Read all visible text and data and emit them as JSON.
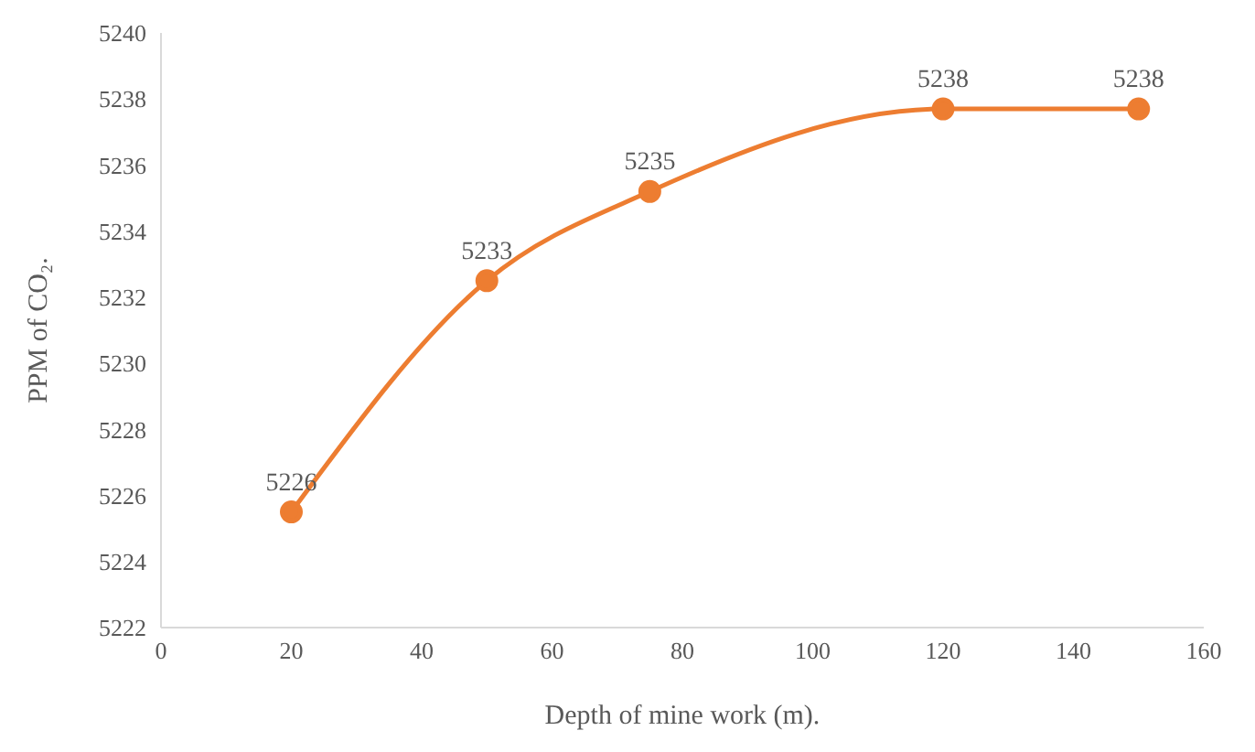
{
  "chart_data": {
    "type": "line",
    "xlabel": "Depth of mine work (m).",
    "ylabel": "PPM of CO₂.",
    "x": [
      20,
      50,
      75,
      120,
      150
    ],
    "series": [
      {
        "color": "#ed7d31",
        "values": [
          5225.5,
          5232.5,
          5235.2,
          5237.7,
          5237.7
        ],
        "value_labels": [
          "5226",
          "5233",
          "5235",
          "5238",
          "5238"
        ]
      }
    ],
    "xlim": [
      0,
      160
    ],
    "xticks": [
      0,
      20,
      40,
      60,
      80,
      100,
      120,
      140,
      160
    ],
    "ylim": [
      5222,
      5240
    ],
    "yticks": [
      5222,
      5224,
      5226,
      5228,
      5230,
      5232,
      5234,
      5236,
      5238,
      5240
    ],
    "grid": false,
    "legend": false,
    "marker": "circle",
    "line_style": "solid"
  }
}
